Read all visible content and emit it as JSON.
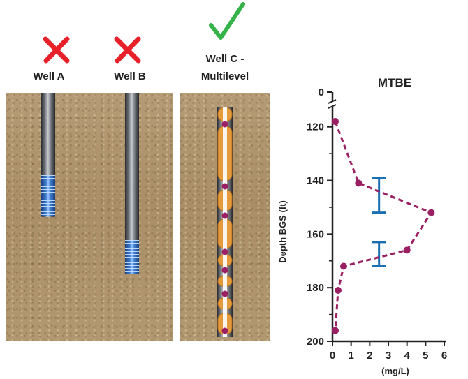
{
  "wells": [
    {
      "label_line1": "Well A",
      "label_line2": "",
      "status_icon": "red-x-icon"
    },
    {
      "label_line1": "Well B",
      "label_line2": "",
      "status_icon": "red-x-icon"
    },
    {
      "label_line1": "Well C -",
      "label_line2": "Multilevel",
      "status_icon": "green-check-icon"
    }
  ],
  "colors": {
    "reject": "#e8202a",
    "accept": "#36b24a",
    "series": "#9b1f63",
    "interval": "#1a6fb3",
    "soil": "#b09570"
  },
  "chart_data": {
    "type": "line",
    "title": "MTBE",
    "xlabel": "(mg/L)",
    "ylabel": "Depth BGS (ft)",
    "xlim": [
      0,
      6
    ],
    "ylim": [
      200,
      0
    ],
    "y_axis_break": true,
    "xticks": [
      0,
      1,
      2,
      3,
      4,
      5,
      6
    ],
    "yticks": [
      0,
      120,
      140,
      160,
      180,
      200
    ],
    "series": [
      {
        "x": [
          0.15,
          1.4,
          5.3,
          4.0,
          0.6,
          0.3,
          0.15
        ],
        "y": [
          118,
          141,
          152,
          166,
          172,
          181,
          196
        ]
      }
    ],
    "sampling_intervals": [
      {
        "x": 2.5,
        "y_top": 139,
        "y_bottom": 152
      },
      {
        "x": 2.5,
        "y_top": 163,
        "y_bottom": 172
      }
    ]
  }
}
